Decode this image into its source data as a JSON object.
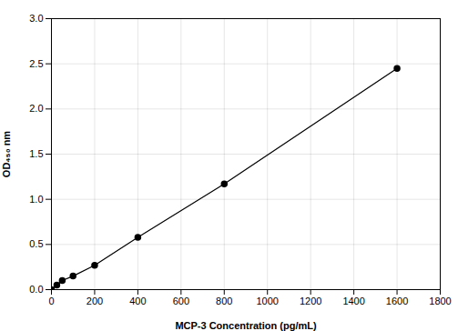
{
  "chart_data": {
    "type": "line",
    "x": [
      0,
      25,
      50,
      100,
      200,
      400,
      800,
      1600
    ],
    "values": [
      0.0,
      0.05,
      0.1,
      0.15,
      0.27,
      0.58,
      1.17,
      2.45
    ],
    "color": "#000000",
    "marker": "circle",
    "xlabel": "MCP-3 Concentration (pg/mL)",
    "ylabel": "OD₄₅₀ nm",
    "xlim": [
      0,
      1800
    ],
    "ylim": [
      0,
      3.0
    ],
    "xticks": [
      0,
      200,
      400,
      600,
      800,
      1000,
      1200,
      1400,
      1600,
      1800
    ],
    "yticks": [
      {
        "value": 0,
        "label": "0.0"
      },
      0.5,
      {
        "value": 1.0,
        "label": "1.0"
      },
      1.5,
      {
        "value": 2.0,
        "label": "2.0"
      },
      2.5,
      {
        "value": 3.0,
        "label": "3.0"
      }
    ],
    "grid": true
  }
}
